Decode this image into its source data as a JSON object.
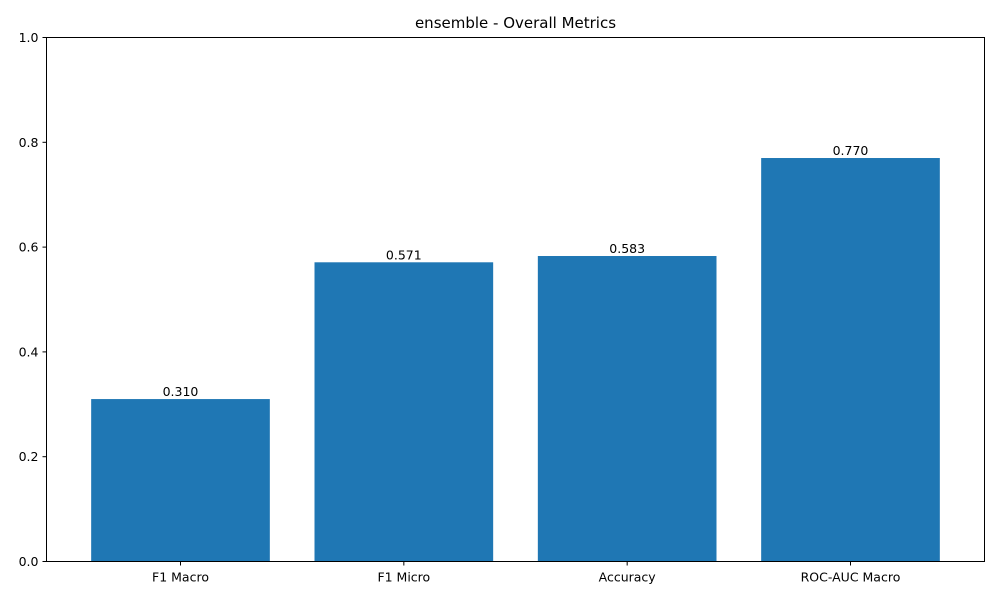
{
  "chart_data": {
    "type": "bar",
    "title": "ensemble - Overall Metrics",
    "xlabel": "",
    "ylabel": "",
    "categories": [
      "F1 Macro",
      "F1 Micro",
      "Accuracy",
      "ROC-AUC Macro"
    ],
    "values": [
      0.31,
      0.571,
      0.583,
      0.77
    ],
    "value_labels": [
      "0.310",
      "0.571",
      "0.583",
      "0.770"
    ],
    "ylim": [
      0,
      1.0
    ],
    "yticks": [
      0.0,
      0.2,
      0.4,
      0.6,
      0.8,
      1.0
    ],
    "ytick_labels": [
      "0.0",
      "0.2",
      "0.4",
      "0.6",
      "0.8",
      "1.0"
    ],
    "grid": false,
    "legend": "none",
    "bar_color": "#1f77b4"
  }
}
